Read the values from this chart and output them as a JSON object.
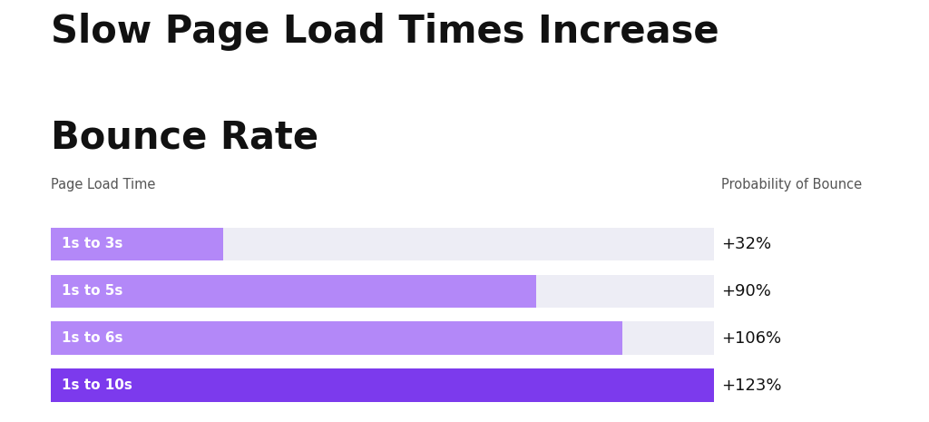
{
  "title_line1": "Slow Page Load Times Increase",
  "title_line2": "Bounce Rate",
  "col_label_left": "Page Load Time",
  "col_label_right": "Probability of Bounce",
  "categories": [
    "1s to 3s",
    "1s to 5s",
    "1s to 6s",
    "1s to 10s"
  ],
  "values": [
    32,
    90,
    106,
    123
  ],
  "max_value": 123,
  "bar_colors": [
    "#b388f8",
    "#b388f8",
    "#b388f8",
    "#7c3aed"
  ],
  "background_color": "#ffffff",
  "bar_bg_color": "#ededf5",
  "bar_height": 0.7,
  "title_fontsize": 30,
  "col_label_fontsize": 10.5,
  "bar_label_fontsize": 11,
  "value_fontsize": 13
}
